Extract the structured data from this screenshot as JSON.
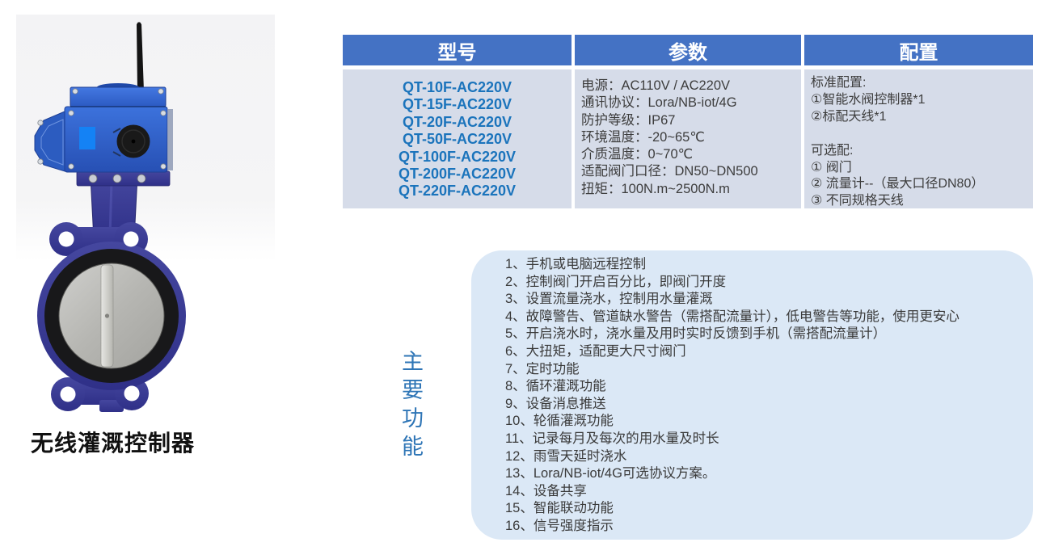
{
  "product": {
    "caption": "无线灌溉控制器",
    "image_alt": "wireless-irrigation-valve-photo"
  },
  "spec_table": {
    "headers": [
      "型号",
      "参数",
      "配置"
    ],
    "models": [
      "QT-10F-AC220V",
      "QT-15F-AC220V",
      "QT-20F-AC220V",
      "QT-50F-AC220V",
      "QT-100F-AC220V",
      "QT-200F-AC220V",
      "QT-220F-AC220V"
    ],
    "parameters": [
      "电源：AC110V / AC220V",
      "通讯协议：Lora/NB-iot/4G",
      "防护等级：IP67",
      "环境温度：-20~65℃",
      "介质温度：0~70℃",
      "适配阀门口径：DN50~DN500",
      "扭矩：100N.m~2500N.m"
    ],
    "configuration": [
      "标准配置:",
      "①智能水阀控制器*1",
      "②标配天线*1",
      "",
      "可选配:",
      "① 阀门",
      "② 流量计--（最大口径DN80）",
      "③ 不同规格天线"
    ]
  },
  "features": {
    "label": "主要功能",
    "items": [
      "1、手机或电脑远程控制",
      "2、控制阀门开启百分比，即阀门开度",
      "3、设置流量浇水，控制用水量灌溉",
      "4、故障警告、管道缺水警告（需搭配流量计），低电警告等功能，使用更安心",
      "5、开启浇水时，浇水量及用时实时反馈到手机（需搭配流量计）",
      "6、大扭矩，适配更大尺寸阀门",
      "7、定时功能",
      "8、循环灌溉功能",
      "9、设备消息推送",
      "10、轮循灌溉功能",
      "11、记录每月及每次的用水量及时长",
      "12、雨雪天延时浇水",
      "13、Lora/NB-iot/4G可选协议方案。",
      "14、设备共享",
      "15、智能联动功能",
      "16、信号强度指示"
    ]
  },
  "colors": {
    "header_bg": "#4472C4",
    "header_text": "#FFFFFF",
    "table_body_bg": "#D6DCE9",
    "model_text": "#1B74BC",
    "body_text": "#3D3D3D",
    "features_box_bg": "#DBE8F6",
    "features_label_text": "#2E75B6",
    "actuator_blue": "#2E5FC8",
    "valve_navy": "#3A3C9E"
  }
}
